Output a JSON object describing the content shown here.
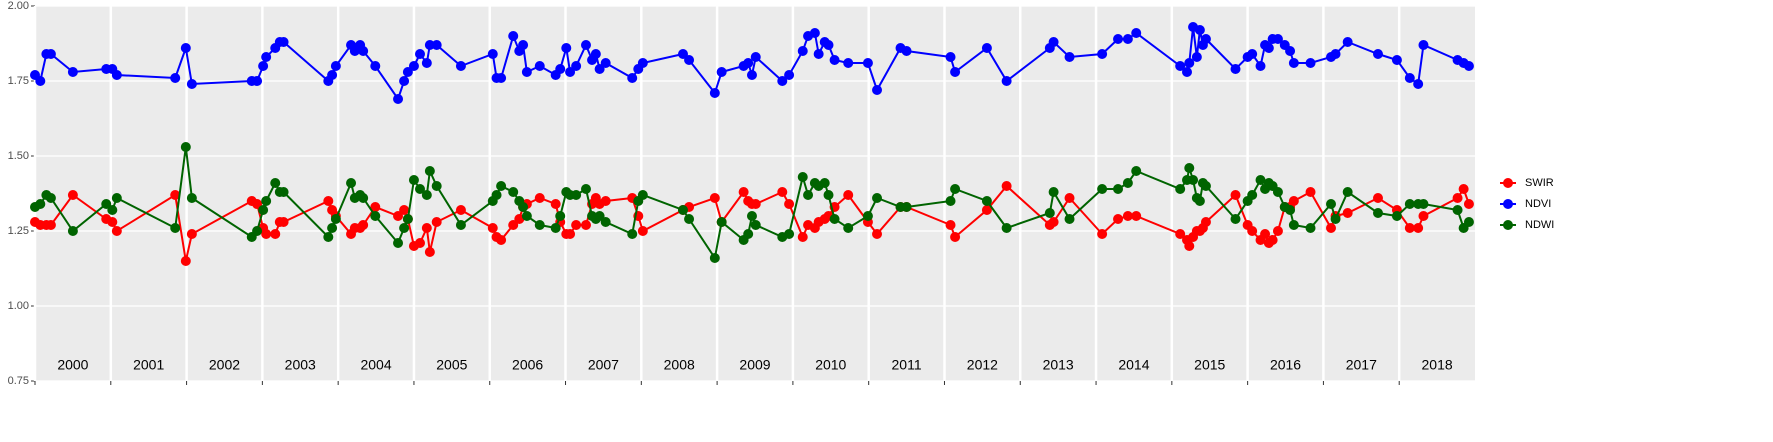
{
  "chart_data": {
    "type": "line",
    "x": [
      2000.0,
      2000.07,
      2000.15,
      2000.21,
      2000.5,
      2000.94,
      2001.02,
      2001.08,
      2001.85,
      2001.99,
      2002.07,
      2002.86,
      2002.93,
      2003.01,
      2003.05,
      2003.17,
      2003.23,
      2003.28,
      2003.87,
      2003.92,
      2003.97,
      2004.17,
      2004.22,
      2004.29,
      2004.33,
      2004.49,
      2004.79,
      2004.87,
      2004.92,
      2005.0,
      2005.08,
      2005.17,
      2005.21,
      2005.3,
      2005.62,
      2006.04,
      2006.09,
      2006.15,
      2006.31,
      2006.39,
      2006.44,
      2006.49,
      2006.66,
      2006.87,
      2006.93,
      2007.01,
      2007.06,
      2007.14,
      2007.27,
      2007.35,
      2007.4,
      2007.45,
      2007.53,
      2007.88,
      2007.96,
      2008.02,
      2008.55,
      2008.63,
      2008.97,
      2009.06,
      2009.35,
      2009.41,
      2009.46,
      2009.51,
      2009.86,
      2009.95,
      2010.13,
      2010.2,
      2010.29,
      2010.34,
      2010.42,
      2010.47,
      2010.55,
      2010.73,
      2010.99,
      2011.11,
      2011.42,
      2011.5,
      2012.08,
      2012.14,
      2012.56,
      2012.82,
      2013.39,
      2013.44,
      2013.65,
      2014.08,
      2014.29,
      2014.42,
      2014.53,
      2015.11,
      2015.2,
      2015.23,
      2015.28,
      2015.33,
      2015.37,
      2015.41,
      2015.45,
      2015.84,
      2016.0,
      2016.06,
      2016.17,
      2016.23,
      2016.28,
      2016.33,
      2016.4,
      2016.49,
      2016.56,
      2016.61,
      2016.83,
      2017.1,
      2017.16,
      2017.32,
      2017.72,
      2017.97,
      2018.14,
      2018.25,
      2018.32,
      2018.77,
      2018.85,
      2018.92
    ],
    "series": [
      {
        "name": "SWIR",
        "color": "#ff0000",
        "values": [
          1.28,
          1.27,
          1.27,
          1.27,
          1.37,
          1.29,
          1.28,
          1.25,
          1.37,
          1.15,
          1.24,
          1.35,
          1.34,
          1.26,
          1.24,
          1.24,
          1.28,
          1.28,
          1.35,
          1.32,
          1.3,
          1.24,
          1.26,
          1.26,
          1.27,
          1.33,
          1.3,
          1.32,
          1.29,
          1.2,
          1.21,
          1.26,
          1.18,
          1.28,
          1.32,
          1.26,
          1.23,
          1.22,
          1.27,
          1.29,
          1.33,
          1.34,
          1.36,
          1.34,
          1.28,
          1.24,
          1.24,
          1.27,
          1.27,
          1.34,
          1.36,
          1.34,
          1.35,
          1.36,
          1.3,
          1.25,
          1.32,
          1.33,
          1.36,
          1.28,
          1.38,
          1.35,
          1.34,
          1.34,
          1.38,
          1.34,
          1.23,
          1.27,
          1.26,
          1.28,
          1.29,
          1.3,
          1.33,
          1.37,
          1.28,
          1.24,
          1.33,
          1.33,
          1.27,
          1.23,
          1.32,
          1.4,
          1.27,
          1.28,
          1.36,
          1.24,
          1.29,
          1.3,
          1.3,
          1.24,
          1.22,
          1.2,
          1.23,
          1.25,
          1.25,
          1.26,
          1.28,
          1.37,
          1.27,
          1.25,
          1.22,
          1.24,
          1.21,
          1.22,
          1.25,
          1.33,
          1.33,
          1.35,
          1.38,
          1.26,
          1.3,
          1.31,
          1.36,
          1.32,
          1.26,
          1.26,
          1.3,
          1.36,
          1.39,
          1.34
        ]
      },
      {
        "name": "NDVI",
        "color": "#0000ff",
        "values": [
          1.77,
          1.75,
          1.84,
          1.84,
          1.78,
          1.79,
          1.79,
          1.77,
          1.76,
          1.86,
          1.74,
          1.75,
          1.75,
          1.8,
          1.83,
          1.86,
          1.88,
          1.88,
          1.75,
          1.77,
          1.8,
          1.87,
          1.85,
          1.87,
          1.85,
          1.8,
          1.69,
          1.75,
          1.78,
          1.8,
          1.84,
          1.81,
          1.87,
          1.87,
          1.8,
          1.84,
          1.76,
          1.76,
          1.9,
          1.85,
          1.87,
          1.78,
          1.8,
          1.77,
          1.79,
          1.86,
          1.78,
          1.8,
          1.87,
          1.82,
          1.84,
          1.79,
          1.81,
          1.76,
          1.79,
          1.81,
          1.84,
          1.82,
          1.71,
          1.78,
          1.8,
          1.81,
          1.77,
          1.83,
          1.75,
          1.77,
          1.85,
          1.9,
          1.91,
          1.84,
          1.88,
          1.87,
          1.82,
          1.81,
          1.81,
          1.72,
          1.86,
          1.85,
          1.83,
          1.78,
          1.86,
          1.75,
          1.86,
          1.88,
          1.83,
          1.84,
          1.89,
          1.89,
          1.91,
          1.8,
          1.78,
          1.81,
          1.93,
          1.83,
          1.92,
          1.87,
          1.89,
          1.79,
          1.83,
          1.84,
          1.8,
          1.87,
          1.86,
          1.89,
          1.89,
          1.87,
          1.85,
          1.81,
          1.81,
          1.83,
          1.84,
          1.88,
          1.84,
          1.82,
          1.76,
          1.74,
          1.87,
          1.82,
          1.81,
          1.8
        ]
      },
      {
        "name": "NDWI",
        "color": "#006400",
        "values": [
          1.33,
          1.34,
          1.37,
          1.36,
          1.25,
          1.34,
          1.32,
          1.36,
          1.26,
          1.53,
          1.36,
          1.23,
          1.25,
          1.32,
          1.35,
          1.41,
          1.38,
          1.38,
          1.23,
          1.26,
          1.29,
          1.41,
          1.36,
          1.37,
          1.36,
          1.3,
          1.21,
          1.26,
          1.29,
          1.42,
          1.39,
          1.37,
          1.45,
          1.4,
          1.27,
          1.35,
          1.37,
          1.4,
          1.38,
          1.35,
          1.33,
          1.3,
          1.27,
          1.26,
          1.3,
          1.38,
          1.37,
          1.37,
          1.39,
          1.3,
          1.29,
          1.3,
          1.28,
          1.24,
          1.35,
          1.37,
          1.32,
          1.29,
          1.16,
          1.28,
          1.22,
          1.24,
          1.3,
          1.27,
          1.23,
          1.24,
          1.43,
          1.37,
          1.41,
          1.4,
          1.41,
          1.37,
          1.29,
          1.26,
          1.3,
          1.36,
          1.33,
          1.33,
          1.35,
          1.39,
          1.35,
          1.26,
          1.31,
          1.38,
          1.29,
          1.39,
          1.39,
          1.41,
          1.45,
          1.39,
          1.42,
          1.46,
          1.42,
          1.36,
          1.35,
          1.41,
          1.4,
          1.29,
          1.35,
          1.37,
          1.42,
          1.39,
          1.41,
          1.4,
          1.38,
          1.33,
          1.32,
          1.27,
          1.26,
          1.34,
          1.29,
          1.38,
          1.31,
          1.3,
          1.34,
          1.34,
          1.34,
          1.32,
          1.26,
          1.28
        ]
      }
    ],
    "xlim": [
      2000.0,
      2019.0
    ],
    "xticks": [
      2000,
      2001,
      2002,
      2003,
      2004,
      2005,
      2006,
      2007,
      2008,
      2009,
      2010,
      2011,
      2012,
      2013,
      2014,
      2015,
      2016,
      2017,
      2018
    ],
    "ylim": [
      0.75,
      2.0
    ],
    "yticks": [
      {
        "value": 0.75,
        "label": "0.75"
      },
      {
        "value": 1.0,
        "label": "1.00"
      },
      {
        "value": 1.25,
        "label": "1.25"
      },
      {
        "value": 1.5,
        "label": "1.50"
      },
      {
        "value": 1.75,
        "label": "1.75"
      },
      {
        "value": 2.0,
        "label": "2.00"
      }
    ],
    "grid": true
  }
}
